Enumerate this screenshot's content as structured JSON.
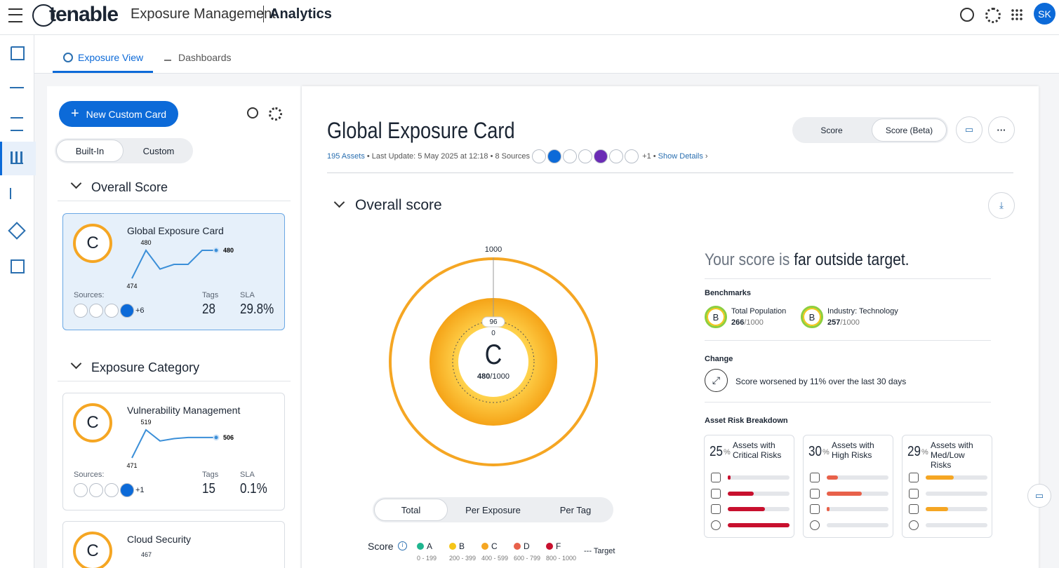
{
  "header": {
    "brand": "tenable",
    "product": "Exposure Management",
    "section": "Analytics",
    "avatar": "SK"
  },
  "tabs": [
    "Exposure View",
    "Dashboards"
  ],
  "sidebar": {
    "new_card": "New Custom Card",
    "filters": [
      "Built-In",
      "Custom"
    ],
    "groups": [
      {
        "title": "Overall Score",
        "cards": [
          {
            "grade": "C",
            "title": "Global Exposure Card",
            "trend": [
              474,
              480,
              476,
              477,
              477,
              480,
              480
            ],
            "sources_label": "Sources:",
            "more_sources": "+6",
            "tags_label": "Tags",
            "tags": 28,
            "sla_label": "SLA",
            "sla": "29.8%"
          }
        ]
      },
      {
        "title": "Exposure Category",
        "cards": [
          {
            "grade": "C",
            "title": "Vulnerability Management",
            "trend": [
              471,
              519,
              500,
              504,
              506,
              506,
              506
            ],
            "sources_label": "Sources:",
            "more_sources": "+1",
            "tags_label": "Tags",
            "tags": 15,
            "sla_label": "SLA",
            "sla": "0.1%"
          },
          {
            "grade": "C",
            "title": "Cloud Security",
            "peak_label": 467
          }
        ]
      }
    ]
  },
  "card": {
    "title": "Global Exposure Card",
    "assets": "195 Assets",
    "updated": "Last Update: 5 May 2025 at 12:18",
    "sources": "8 Sources",
    "more_sources": "+1",
    "details": "Show Details",
    "views": [
      "Score",
      "Score (Beta)"
    ]
  },
  "overall": {
    "title": "Overall score",
    "max": 1000,
    "target": 96,
    "min": 0,
    "grade": "C",
    "score": 480,
    "out_of": "/1000",
    "headline_a": "Your score is",
    "headline_b": "far outside target.",
    "benchmarks_title": "Benchmarks",
    "benchmarks": [
      {
        "grade": "B",
        "name": "Total Population",
        "score": 266,
        "out_of": "/1000"
      },
      {
        "grade": "B",
        "name": "Industry: Technology",
        "score": 257,
        "out_of": "/1000"
      }
    ],
    "change_title": "Change",
    "change": "Score worsened by 11% over the last 30 days",
    "breakdown_title": "Asset Risk Breakdown",
    "breakdown": [
      {
        "percent": 25,
        "unit": "%",
        "label": "Assets with Critical Risks",
        "color": "#c8102e",
        "bars": [
          5,
          42,
          60,
          100
        ]
      },
      {
        "percent": 30,
        "unit": "%",
        "label": "Assets with High Risks",
        "color": "#e8614a",
        "bars": [
          18,
          57,
          4,
          0
        ]
      },
      {
        "percent": 29,
        "unit": "%",
        "label": "Assets with Med/Low Risks",
        "color": "#f5a623",
        "bars": [
          46,
          0,
          36,
          0
        ]
      }
    ],
    "modes": [
      "Total",
      "Per Exposure",
      "Per Tag"
    ],
    "legend_title": "Score",
    "legend": [
      {
        "grade": "A",
        "range": "0 - 199",
        "color": "#1fb58f"
      },
      {
        "grade": "B",
        "range": "200 - 399",
        "color": "#f5c518"
      },
      {
        "grade": "C",
        "range": "400 - 599",
        "color": "#f5a623"
      },
      {
        "grade": "D",
        "range": "600 - 799",
        "color": "#e8614a"
      },
      {
        "grade": "F",
        "range": "800 - 1000",
        "color": "#c8102e"
      }
    ],
    "target_label": "Target"
  }
}
